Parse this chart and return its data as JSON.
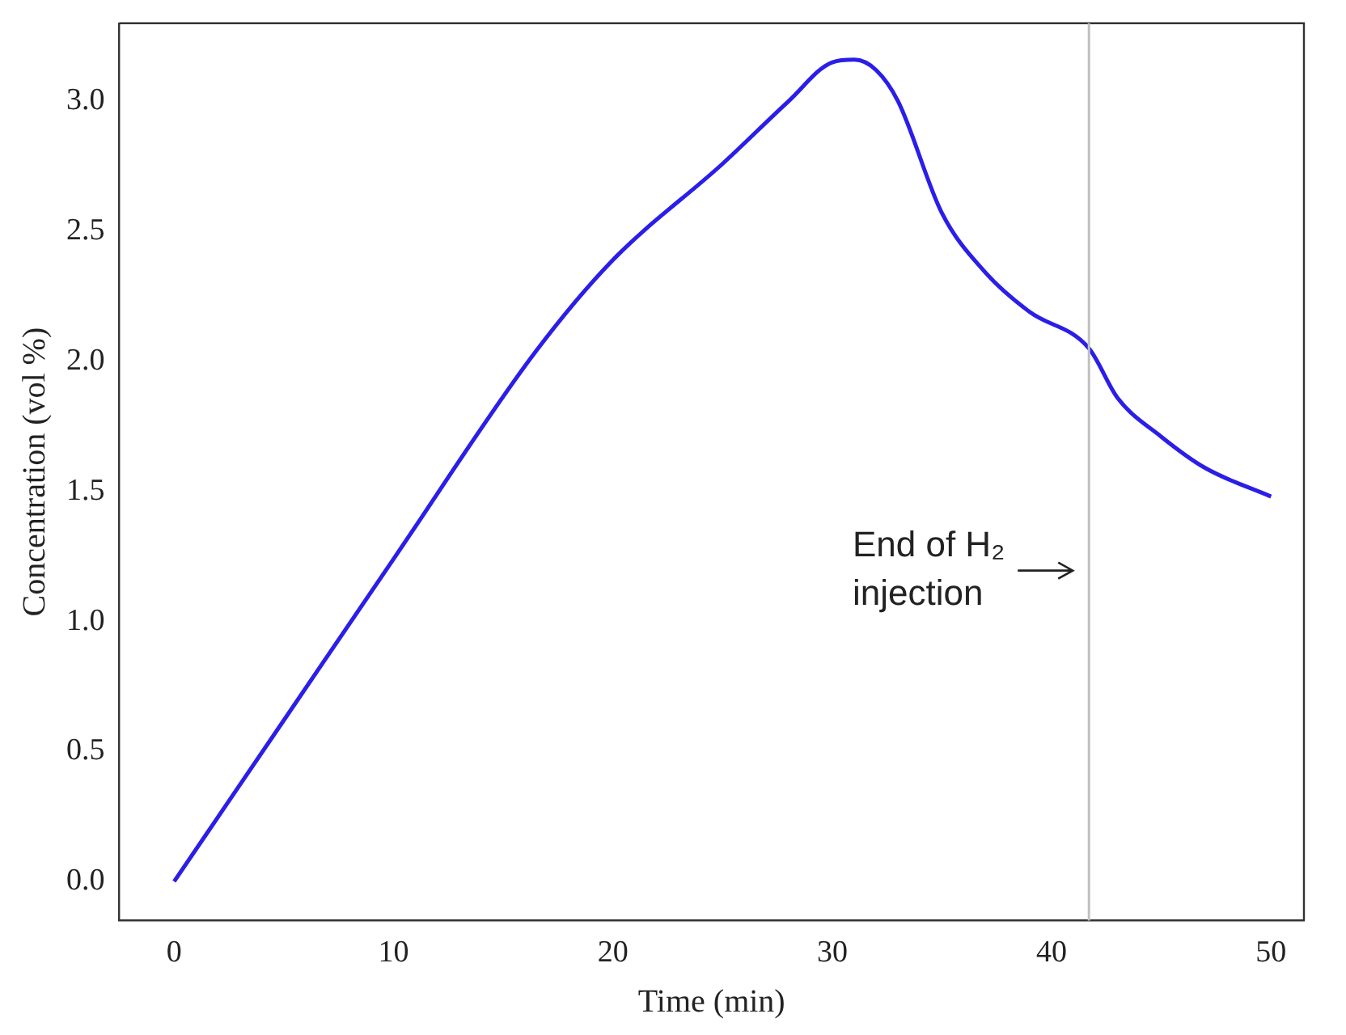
{
  "chart_data": {
    "type": "line",
    "xlabel": "Time (min)",
    "ylabel": "Concentration (vol %)",
    "x": [
      0,
      5,
      10,
      16.5,
      20,
      25,
      28,
      30,
      31,
      32,
      33,
      35,
      37,
      39,
      41.7,
      43,
      45,
      47,
      50
    ],
    "series": [
      {
        "color": "#2a1ee8",
        "values": [
          0,
          0.62,
          1.24,
          2.04,
          2.39,
          2.76,
          3.0,
          3.15,
          3.16,
          3.12,
          3.0,
          2.57,
          2.34,
          2.19,
          2.05,
          1.86,
          1.71,
          1.59,
          1.48
        ]
      }
    ],
    "xlim": [
      -2.5,
      51.5
    ],
    "xticks": [
      0,
      10,
      20,
      30,
      40,
      50
    ],
    "ylim": [
      -0.15,
      3.3
    ],
    "yticks": [
      {
        "value": 0,
        "label": "0.0"
      },
      {
        "value": 0.5,
        "label": "0.5"
      },
      {
        "value": 1,
        "label": "1.0"
      },
      {
        "value": 1.5,
        "label": "1.5"
      },
      {
        "value": 2,
        "label": "2.0"
      },
      {
        "value": 2.5,
        "label": "2.5"
      },
      {
        "value": 3,
        "label": "3.0"
      }
    ],
    "ref_lines": [
      {
        "axis": "x",
        "value": 41.7,
        "color": "#c0c0c0"
      }
    ],
    "annotations": [
      "End of H₂\ninjection"
    ],
    "grid": false,
    "legend": false,
    "marker": "none",
    "line_style": "solid"
  }
}
